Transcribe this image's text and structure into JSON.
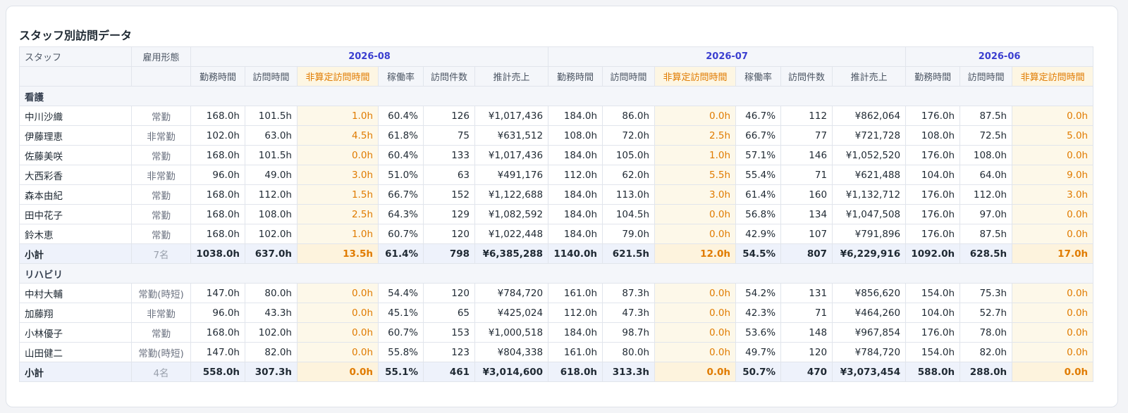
{
  "title": "スタッフ別訪問データ",
  "headers": {
    "staff": "スタッフ",
    "employment": "雇用形態",
    "months": [
      "2026-08",
      "2026-07",
      "2026-06"
    ],
    "sub_columns": [
      "勤務時間",
      "訪問時間",
      "非算定訪問時間",
      "稼働率",
      "訪問件数",
      "推計売上"
    ],
    "sub_columns_partial": [
      "勤務時間",
      "訪問時間",
      "非算定訪問時間"
    ]
  },
  "groups": [
    {
      "name": "看護",
      "rows": [
        {
          "name": "中川沙織",
          "emp": "常勤",
          "m1": [
            "168.0h",
            "101.5h",
            "1.0h",
            "60.4%",
            "126",
            "¥1,017,436"
          ],
          "m2": [
            "184.0h",
            "86.0h",
            "0.0h",
            "46.7%",
            "112",
            "¥862,064"
          ],
          "m3": [
            "176.0h",
            "87.5h",
            "0.0h"
          ]
        },
        {
          "name": "伊藤理恵",
          "emp": "非常勤",
          "m1": [
            "102.0h",
            "63.0h",
            "4.5h",
            "61.8%",
            "75",
            "¥631,512"
          ],
          "m2": [
            "108.0h",
            "72.0h",
            "2.5h",
            "66.7%",
            "77",
            "¥721,728"
          ],
          "m3": [
            "108.0h",
            "72.5h",
            "5.0h"
          ]
        },
        {
          "name": "佐藤美咲",
          "emp": "常勤",
          "m1": [
            "168.0h",
            "101.5h",
            "0.0h",
            "60.4%",
            "133",
            "¥1,017,436"
          ],
          "m2": [
            "184.0h",
            "105.0h",
            "1.0h",
            "57.1%",
            "146",
            "¥1,052,520"
          ],
          "m3": [
            "176.0h",
            "108.0h",
            "0.0h"
          ]
        },
        {
          "name": "大西彩香",
          "emp": "非常勤",
          "m1": [
            "96.0h",
            "49.0h",
            "3.0h",
            "51.0%",
            "63",
            "¥491,176"
          ],
          "m2": [
            "112.0h",
            "62.0h",
            "5.5h",
            "55.4%",
            "71",
            "¥621,488"
          ],
          "m3": [
            "104.0h",
            "64.0h",
            "9.0h"
          ]
        },
        {
          "name": "森本由紀",
          "emp": "常勤",
          "m1": [
            "168.0h",
            "112.0h",
            "1.5h",
            "66.7%",
            "152",
            "¥1,122,688"
          ],
          "m2": [
            "184.0h",
            "113.0h",
            "3.0h",
            "61.4%",
            "160",
            "¥1,132,712"
          ],
          "m3": [
            "176.0h",
            "112.0h",
            "3.0h"
          ]
        },
        {
          "name": "田中花子",
          "emp": "常勤",
          "m1": [
            "168.0h",
            "108.0h",
            "2.5h",
            "64.3%",
            "129",
            "¥1,082,592"
          ],
          "m2": [
            "184.0h",
            "104.5h",
            "0.0h",
            "56.8%",
            "134",
            "¥1,047,508"
          ],
          "m3": [
            "176.0h",
            "97.0h",
            "0.0h"
          ]
        },
        {
          "name": "鈴木恵",
          "emp": "常勤",
          "m1": [
            "168.0h",
            "102.0h",
            "1.0h",
            "60.7%",
            "120",
            "¥1,022,448"
          ],
          "m2": [
            "184.0h",
            "79.0h",
            "0.0h",
            "42.9%",
            "107",
            "¥791,896"
          ],
          "m3": [
            "176.0h",
            "87.5h",
            "0.0h"
          ]
        }
      ],
      "subtotal": {
        "name": "小計",
        "emp": "7名",
        "m1": [
          "1038.0h",
          "637.0h",
          "13.5h",
          "61.4%",
          "798",
          "¥6,385,288"
        ],
        "m2": [
          "1140.0h",
          "621.5h",
          "12.0h",
          "54.5%",
          "807",
          "¥6,229,916"
        ],
        "m3": [
          "1092.0h",
          "628.5h",
          "17.0h"
        ]
      }
    },
    {
      "name": "リハビリ",
      "rows": [
        {
          "name": "中村大輔",
          "emp": "常勤(時短)",
          "m1": [
            "147.0h",
            "80.0h",
            "0.0h",
            "54.4%",
            "120",
            "¥784,720"
          ],
          "m2": [
            "161.0h",
            "87.3h",
            "0.0h",
            "54.2%",
            "131",
            "¥856,620"
          ],
          "m3": [
            "154.0h",
            "75.3h",
            "0.0h"
          ]
        },
        {
          "name": "加藤翔",
          "emp": "非常勤",
          "m1": [
            "96.0h",
            "43.3h",
            "0.0h",
            "45.1%",
            "65",
            "¥425,024"
          ],
          "m2": [
            "112.0h",
            "47.3h",
            "0.0h",
            "42.3%",
            "71",
            "¥464,260"
          ],
          "m3": [
            "104.0h",
            "52.7h",
            "0.0h"
          ]
        },
        {
          "name": "小林優子",
          "emp": "常勤",
          "m1": [
            "168.0h",
            "102.0h",
            "0.0h",
            "60.7%",
            "153",
            "¥1,000,518"
          ],
          "m2": [
            "184.0h",
            "98.7h",
            "0.0h",
            "53.6%",
            "148",
            "¥967,854"
          ],
          "m3": [
            "176.0h",
            "78.0h",
            "0.0h"
          ]
        },
        {
          "name": "山田健二",
          "emp": "常勤(時短)",
          "m1": [
            "147.0h",
            "82.0h",
            "0.0h",
            "55.8%",
            "123",
            "¥804,338"
          ],
          "m2": [
            "161.0h",
            "80.0h",
            "0.0h",
            "49.7%",
            "120",
            "¥784,720"
          ],
          "m3": [
            "154.0h",
            "82.0h",
            "0.0h"
          ]
        }
      ],
      "subtotal": {
        "name": "小計",
        "emp": "4名",
        "m1": [
          "558.0h",
          "307.3h",
          "0.0h",
          "55.1%",
          "461",
          "¥3,014,600"
        ],
        "m2": [
          "618.0h",
          "313.3h",
          "0.0h",
          "50.7%",
          "470",
          "¥3,073,454"
        ],
        "m3": [
          "588.0h",
          "288.0h",
          "0.0h"
        ]
      }
    }
  ],
  "colors": {
    "month_header": "#3b3fd0",
    "highlight_text": "#e07b00",
    "highlight_bg": "#fdf8e9"
  }
}
